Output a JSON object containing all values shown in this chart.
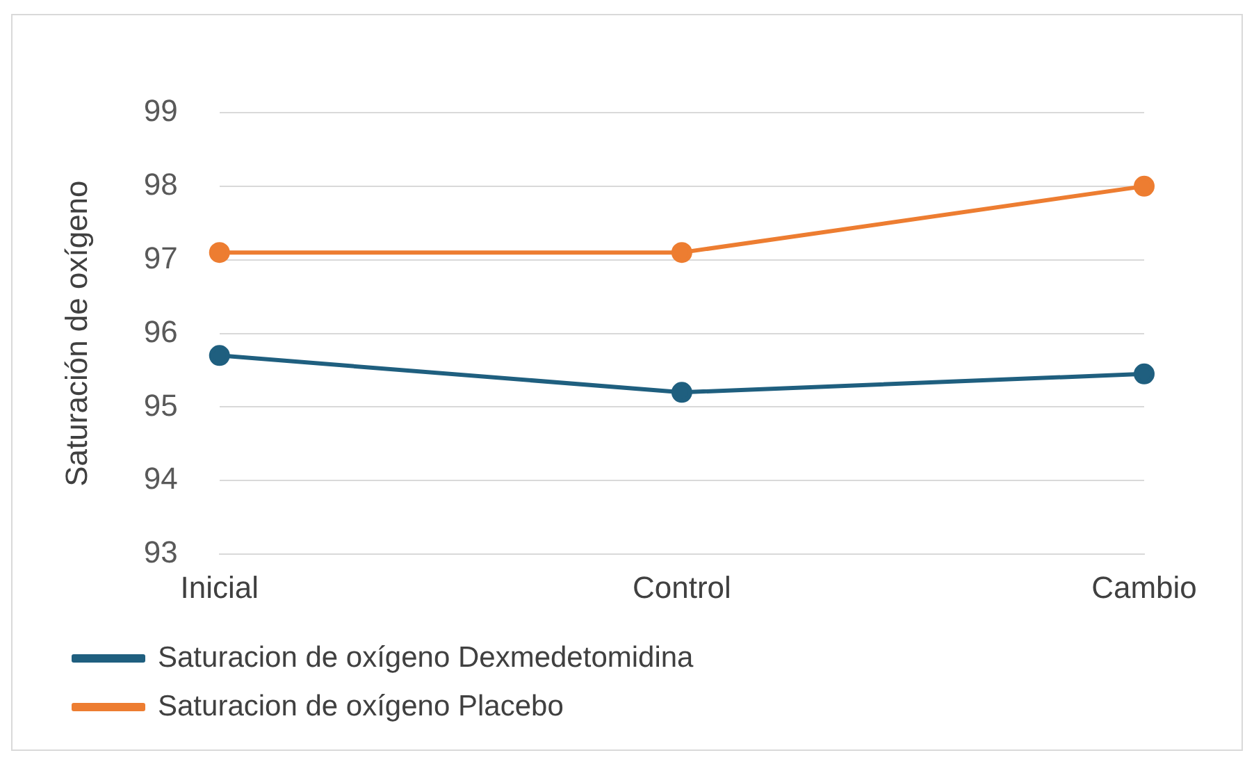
{
  "chart_data": {
    "type": "line",
    "ylabel": "Saturación de oxígeno",
    "categories": [
      "Inicial",
      "Control",
      "Cambio"
    ],
    "series": [
      {
        "name": "Saturacion de oxígeno Dexmedetomidina",
        "color": "#1f5f7f",
        "values": [
          95.7,
          95.2,
          95.45
        ]
      },
      {
        "name": "Saturacion de oxígeno Placebo",
        "color": "#ed7d31",
        "values": [
          97.1,
          97.1,
          98.0
        ]
      }
    ],
    "ylim": [
      93,
      99
    ],
    "yticks": [
      93,
      94,
      95,
      96,
      97,
      98,
      99
    ],
    "grid": "y",
    "legend": "bottom",
    "marker": "circle",
    "line_style": "solid"
  }
}
